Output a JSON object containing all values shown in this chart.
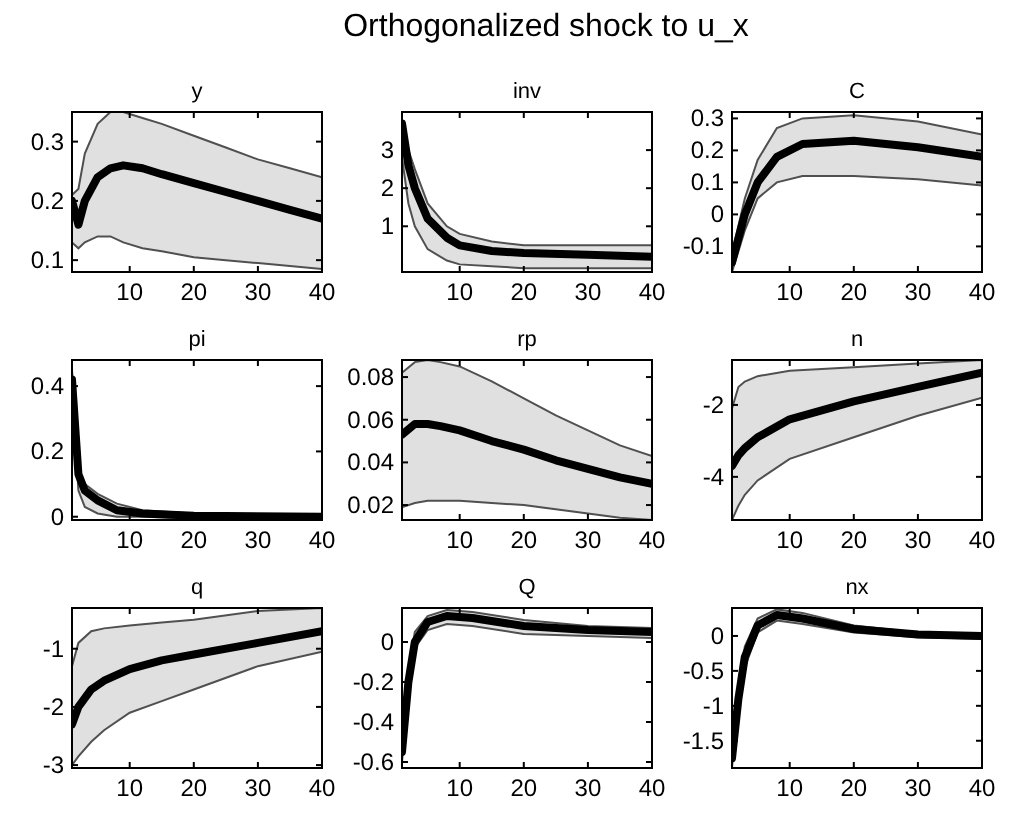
{
  "chart_data": [
    {
      "type": "line",
      "title": "y",
      "annotations": [
        "Orthogonalized shock to u_x"
      ],
      "xlim": [
        1,
        40
      ],
      "xticks": [
        10,
        20,
        30,
        40
      ],
      "ylim": [
        0.08,
        0.35
      ],
      "yticks": [
        0.1,
        0.2,
        0.3
      ],
      "x": [
        1,
        2,
        3,
        5,
        7,
        9,
        12,
        15,
        20,
        25,
        30,
        35,
        40
      ],
      "series": [
        {
          "color": "#000000",
          "values": [
            0.2,
            0.16,
            0.2,
            0.24,
            0.255,
            0.26,
            0.255,
            0.245,
            0.23,
            0.215,
            0.2,
            0.185,
            0.17
          ],
          "lower": [
            0.13,
            0.12,
            0.13,
            0.14,
            0.14,
            0.13,
            0.12,
            0.115,
            0.105,
            0.1,
            0.095,
            0.09,
            0.085
          ],
          "upper": [
            0.21,
            0.22,
            0.28,
            0.33,
            0.35,
            0.35,
            0.34,
            0.33,
            0.31,
            0.29,
            0.27,
            0.255,
            0.24
          ]
        }
      ]
    },
    {
      "type": "line",
      "title": "inv",
      "xlim": [
        1,
        40
      ],
      "xticks": [
        10,
        20,
        30,
        40
      ],
      "ylim": [
        -0.2,
        4
      ],
      "yticks": [
        1,
        2,
        3
      ],
      "x": [
        1,
        2,
        3,
        5,
        8,
        10,
        15,
        20,
        30,
        40
      ],
      "series": [
        {
          "color": "#000000",
          "values": [
            3.7,
            2.6,
            2,
            1.2,
            0.7,
            0.5,
            0.35,
            0.3,
            0.25,
            0.2
          ],
          "lower": [
            2.8,
            1.6,
            1,
            0.4,
            0.1,
            0,
            -0.05,
            -0.1,
            -0.1,
            -0.1
          ],
          "upper": [
            3.8,
            3,
            2.5,
            1.6,
            1,
            0.8,
            0.6,
            0.5,
            0.5,
            0.5
          ]
        }
      ]
    },
    {
      "type": "line",
      "title": "C",
      "xlim": [
        1,
        40
      ],
      "xticks": [
        10,
        20,
        30,
        40
      ],
      "ylim": [
        -0.18,
        0.32
      ],
      "yticks": [
        0.3,
        0.2,
        0.1,
        0,
        -0.1
      ],
      "x": [
        1,
        3,
        5,
        8,
        12,
        20,
        30,
        40
      ],
      "series": [
        {
          "color": "#000000",
          "values": [
            -0.15,
            0,
            0.1,
            0.18,
            0.22,
            0.23,
            0.21,
            0.18
          ],
          "lower": [
            -0.18,
            -0.05,
            0.05,
            0.1,
            0.12,
            0.12,
            0.11,
            0.09
          ],
          "upper": [
            -0.12,
            0.05,
            0.17,
            0.27,
            0.3,
            0.31,
            0.29,
            0.25
          ]
        }
      ]
    },
    {
      "type": "line",
      "title": "pi",
      "xlim": [
        1,
        40
      ],
      "xticks": [
        10,
        20,
        30,
        40
      ],
      "ylim": [
        -0.01,
        0.48
      ],
      "yticks": [
        0,
        0.2,
        0.4
      ],
      "x": [
        1,
        2,
        3,
        5,
        8,
        12,
        20,
        40
      ],
      "series": [
        {
          "color": "#000000",
          "values": [
            0.42,
            0.13,
            0.08,
            0.05,
            0.02,
            0.01,
            0.003,
            0
          ],
          "lower": [
            0.4,
            0.08,
            0.03,
            0.01,
            0,
            0,
            -0.005,
            -0.005
          ],
          "upper": [
            0.45,
            0.15,
            0.1,
            0.07,
            0.04,
            0.02,
            0.01,
            0.005
          ]
        }
      ]
    },
    {
      "type": "line",
      "title": "rp",
      "xlim": [
        1,
        40
      ],
      "xticks": [
        10,
        20,
        30,
        40
      ],
      "ylim": [
        0.013,
        0.088
      ],
      "yticks": [
        0.02,
        0.04,
        0.06,
        0.08
      ],
      "x": [
        1,
        3,
        5,
        7,
        10,
        15,
        20,
        25,
        30,
        35,
        40
      ],
      "series": [
        {
          "color": "#000000",
          "values": [
            0.053,
            0.058,
            0.058,
            0.057,
            0.055,
            0.05,
            0.046,
            0.041,
            0.037,
            0.033,
            0.03
          ],
          "lower": [
            0.019,
            0.021,
            0.022,
            0.022,
            0.022,
            0.021,
            0.02,
            0.018,
            0.016,
            0.014,
            0.013
          ],
          "upper": [
            0.082,
            0.087,
            0.088,
            0.087,
            0.085,
            0.078,
            0.07,
            0.062,
            0.055,
            0.048,
            0.043
          ]
        }
      ]
    },
    {
      "type": "line",
      "title": "n",
      "xlim": [
        1,
        40
      ],
      "xticks": [
        10,
        20,
        30,
        40
      ],
      "ylim": [
        -5.2,
        -0.75
      ],
      "yticks": [
        -2,
        -4
      ],
      "x": [
        1,
        2,
        3,
        5,
        10,
        20,
        30,
        40
      ],
      "series": [
        {
          "color": "#000000",
          "values": [
            -3.7,
            -3.4,
            -3.2,
            -2.9,
            -2.4,
            -1.9,
            -1.5,
            -1.1
          ],
          "lower": [
            -5.2,
            -4.8,
            -4.5,
            -4.1,
            -3.5,
            -2.9,
            -2.3,
            -1.8
          ],
          "upper": [
            -2.1,
            -1.5,
            -1.35,
            -1.2,
            -1.05,
            -0.95,
            -0.85,
            -0.75
          ]
        }
      ]
    },
    {
      "type": "line",
      "title": "q",
      "xlim": [
        1,
        40
      ],
      "xticks": [
        10,
        20,
        30,
        40
      ],
      "ylim": [
        -3.05,
        -0.3
      ],
      "yticks": [
        -1,
        -2,
        -3
      ],
      "x": [
        1,
        2,
        4,
        6,
        10,
        15,
        20,
        30,
        40
      ],
      "series": [
        {
          "color": "#000000",
          "values": [
            -2.3,
            -2,
            -1.7,
            -1.55,
            -1.35,
            -1.2,
            -1.1,
            -0.9,
            -0.7
          ],
          "lower": [
            -3,
            -2.85,
            -2.6,
            -2.4,
            -2.1,
            -1.9,
            -1.7,
            -1.3,
            -1.05
          ],
          "upper": [
            -1.3,
            -0.9,
            -0.7,
            -0.65,
            -0.6,
            -0.55,
            -0.5,
            -0.35,
            -0.3
          ]
        }
      ]
    },
    {
      "type": "line",
      "title": "Q",
      "xlim": [
        1,
        40
      ],
      "xticks": [
        10,
        20,
        30,
        40
      ],
      "ylim": [
        -0.63,
        0.17
      ],
      "yticks": [
        0,
        -0.2,
        -0.4,
        -0.6
      ],
      "x": [
        1,
        2,
        3,
        5,
        8,
        12,
        20,
        30,
        40
      ],
      "series": [
        {
          "color": "#000000",
          "values": [
            -0.55,
            -0.2,
            0,
            0.1,
            0.13,
            0.12,
            0.08,
            0.06,
            0.05
          ],
          "lower": [
            -0.6,
            -0.25,
            -0.03,
            0.06,
            0.09,
            0.08,
            0.04,
            0.03,
            0.02
          ],
          "upper": [
            -0.5,
            -0.15,
            0.05,
            0.13,
            0.16,
            0.15,
            0.11,
            0.08,
            0.07
          ]
        }
      ]
    },
    {
      "type": "line",
      "title": "nx",
      "xlim": [
        1,
        40
      ],
      "xticks": [
        10,
        20,
        30,
        40
      ],
      "ylim": [
        -1.89,
        0.4
      ],
      "yticks": [
        0,
        -0.5,
        -1,
        -1.5
      ],
      "x": [
        1,
        2,
        3,
        5,
        8,
        12,
        20,
        30,
        40
      ],
      "series": [
        {
          "color": "#000000",
          "values": [
            -1.75,
            -0.9,
            -0.3,
            0.15,
            0.3,
            0.25,
            0.1,
            0.02,
            0
          ],
          "lower": [
            -1.88,
            -1,
            -0.45,
            0.05,
            0.22,
            0.17,
            0.05,
            -0.02,
            -0.04
          ],
          "upper": [
            -1.65,
            -0.8,
            -0.15,
            0.25,
            0.38,
            0.33,
            0.15,
            0.05,
            0.04
          ]
        }
      ]
    }
  ]
}
